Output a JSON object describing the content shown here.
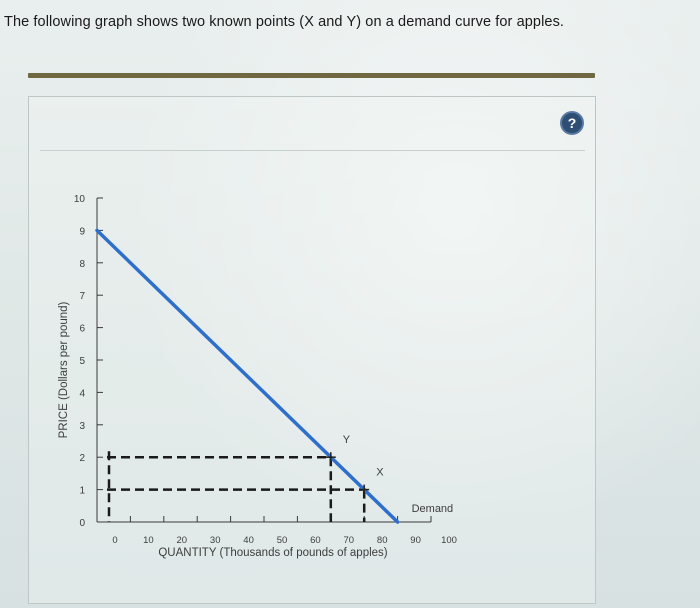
{
  "question": {
    "text": "The following graph shows two known points (X and Y) on a demand curve for apples."
  },
  "help": {
    "label": "?"
  },
  "colors": {
    "demand_line": "#2e6fcc",
    "dashed_guides": "#1a1a1a",
    "divider": "#6f6840",
    "help_button": "#2f4e73"
  },
  "chart_data": {
    "type": "line",
    "title": "",
    "xlabel": "QUANTITY (Thousands of pounds of apples)",
    "ylabel": "PRICE (Dollars per pound)",
    "xlim": [
      0,
      100
    ],
    "ylim": [
      0,
      10
    ],
    "x_ticks": [
      0,
      10,
      20,
      30,
      40,
      50,
      60,
      70,
      80,
      90,
      100
    ],
    "y_ticks": [
      0,
      1,
      2,
      3,
      4,
      5,
      6,
      7,
      8,
      9,
      10
    ],
    "grid": false,
    "series": [
      {
        "name": "Demand",
        "x": [
          0,
          90
        ],
        "y": [
          9,
          0
        ]
      }
    ],
    "points": [
      {
        "label": "Y",
        "x": 70,
        "y": 2
      },
      {
        "label": "X",
        "x": 80,
        "y": 1
      }
    ],
    "guides": "dashed lines from each point to both axes"
  }
}
